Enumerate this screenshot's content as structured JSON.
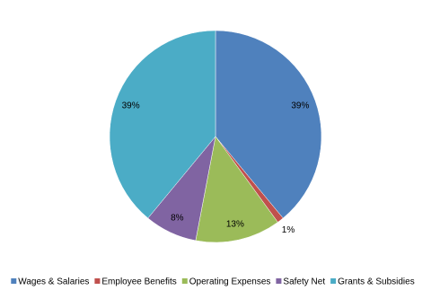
{
  "chart_data": {
    "type": "pie",
    "categories": [
      "Wages & Salaries",
      "Employee Benefits",
      "Operating Expenses",
      "Safety Net",
      "Grants & Subsidies"
    ],
    "values": [
      39,
      1,
      13,
      8,
      39
    ],
    "value_labels": [
      "39%",
      "1%",
      "13%",
      "8%",
      "39%"
    ],
    "colors": [
      "#4f81bd",
      "#c0504d",
      "#9bbb59",
      "#8064a2",
      "#4bacc6"
    ],
    "legend": "bottom"
  }
}
